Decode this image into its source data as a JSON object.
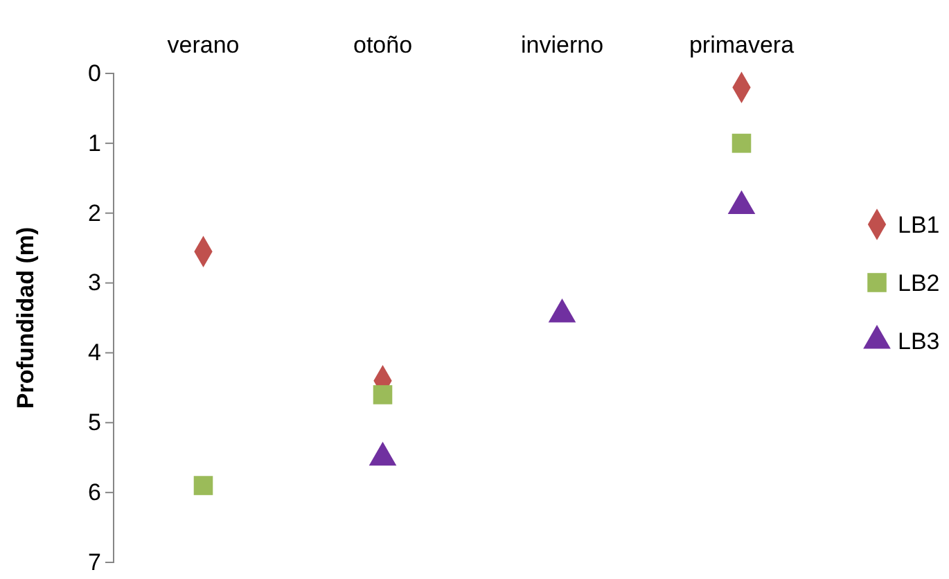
{
  "chart_data": {
    "type": "scatter",
    "ylabel": "Profundidad (m)",
    "categories": [
      "verano",
      "otoño",
      "invierno",
      "primavera"
    ],
    "series": [
      {
        "name": "LB1",
        "color": "#c0504d",
        "marker": "diamond",
        "values": [
          2.55,
          4.4,
          null,
          0.2
        ]
      },
      {
        "name": "LB2",
        "color": "#9bbb59",
        "marker": "square",
        "values": [
          5.9,
          4.6,
          null,
          1.0
        ]
      },
      {
        "name": "LB3",
        "color": "#7030a0",
        "marker": "triangle",
        "values": [
          null,
          5.5,
          3.45,
          1.9
        ]
      }
    ],
    "ylim": [
      7,
      0
    ],
    "yticks": [
      0,
      1,
      2,
      3,
      4,
      5,
      6,
      7
    ],
    "legend": "right"
  }
}
